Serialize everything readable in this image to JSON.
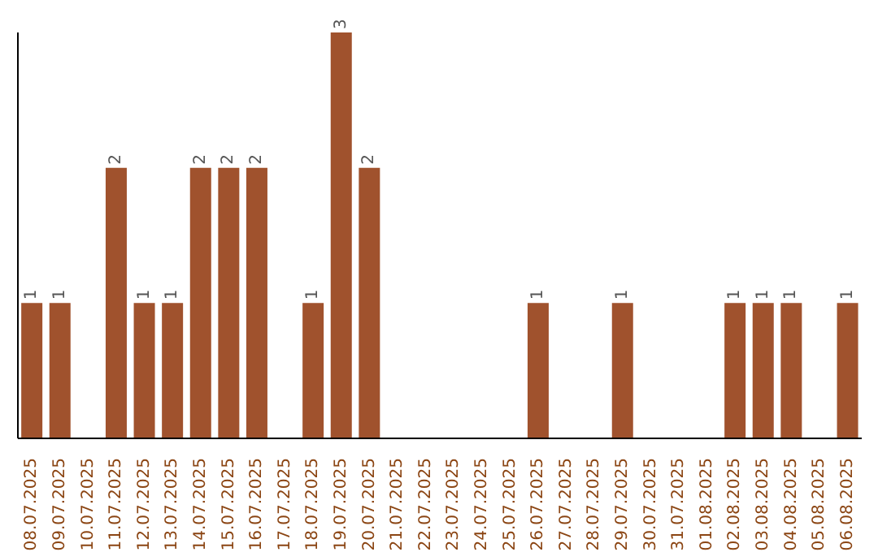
{
  "chart_data": {
    "type": "bar",
    "categories": [
      "08.07.2025",
      "09.07.2025",
      "10.07.2025",
      "11.07.2025",
      "12.07.2025",
      "13.07.2025",
      "14.07.2025",
      "15.07.2025",
      "16.07.2025",
      "17.07.2025",
      "18.07.2025",
      "19.07.2025",
      "20.07.2025",
      "21.07.2025",
      "22.07.2025",
      "23.07.2025",
      "24.07.2025",
      "25.07.2025",
      "26.07.2025",
      "27.07.2025",
      "28.07.2025",
      "29.07.2025",
      "30.07.2025",
      "31.07.2025",
      "01.08.2025",
      "02.08.2025",
      "03.08.2025",
      "04.08.2025",
      "05.08.2025",
      "06.08.2025"
    ],
    "values": [
      1,
      1,
      0,
      2,
      1,
      1,
      2,
      2,
      2,
      0,
      1,
      3,
      2,
      0,
      0,
      0,
      0,
      0,
      1,
      0,
      0,
      1,
      0,
      0,
      0,
      1,
      1,
      1,
      0,
      1
    ],
    "value_labels": [
      "1",
      "1",
      null,
      "2",
      "1",
      "1",
      "2",
      "2",
      "2",
      null,
      "1",
      "3",
      "2",
      null,
      null,
      null,
      null,
      null,
      "1",
      null,
      null,
      "1",
      null,
      null,
      null,
      "1",
      "1",
      "1",
      null,
      "1"
    ],
    "color": "#a0522d",
    "ylim": [
      0,
      3
    ],
    "tick_labels": "x"
  }
}
